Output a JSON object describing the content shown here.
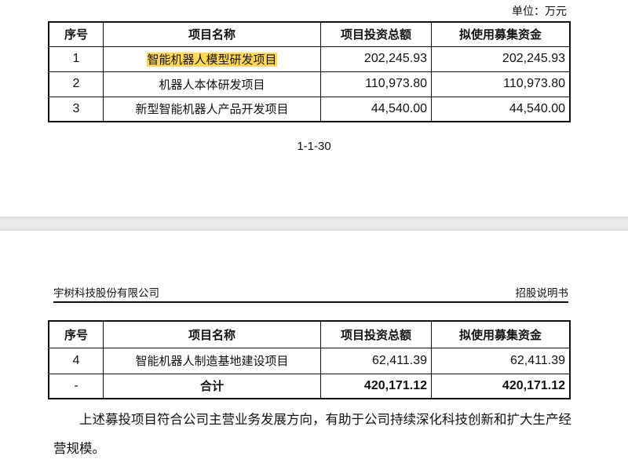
{
  "unit": "单位：万元",
  "columns": [
    "序号",
    "项目名称",
    "项目投资总额",
    "拟使用募集资金"
  ],
  "table1": [
    {
      "no": "1",
      "name": "智能机器人模型研发项目",
      "total": "202,245.93",
      "raised": "202,245.93",
      "highlighted": true
    },
    {
      "no": "2",
      "name": "机器人本体研发项目",
      "total": "110,973.80",
      "raised": "110,973.80"
    },
    {
      "no": "3",
      "name": "新型智能机器人产品开发项目",
      "total": "44,540.00",
      "raised": "44,540.00"
    }
  ],
  "page_number": "1-1-30",
  "header": {
    "company": "宇树科技股份有限公司",
    "doc": "招股说明书"
  },
  "table2": [
    {
      "no": "4",
      "name": "智能机器人制造基地建设项目",
      "total": "62,411.39",
      "raised": "62,411.39"
    },
    {
      "no": "-",
      "name": "合计",
      "total": "420,171.12",
      "raised": "420,171.12"
    }
  ],
  "paragraph": "上述募投项目符合公司主营业务发展方向，有助于公司持续深化科技创新和扩大生产经营规模。",
  "highlight_color": "#ffd84d"
}
